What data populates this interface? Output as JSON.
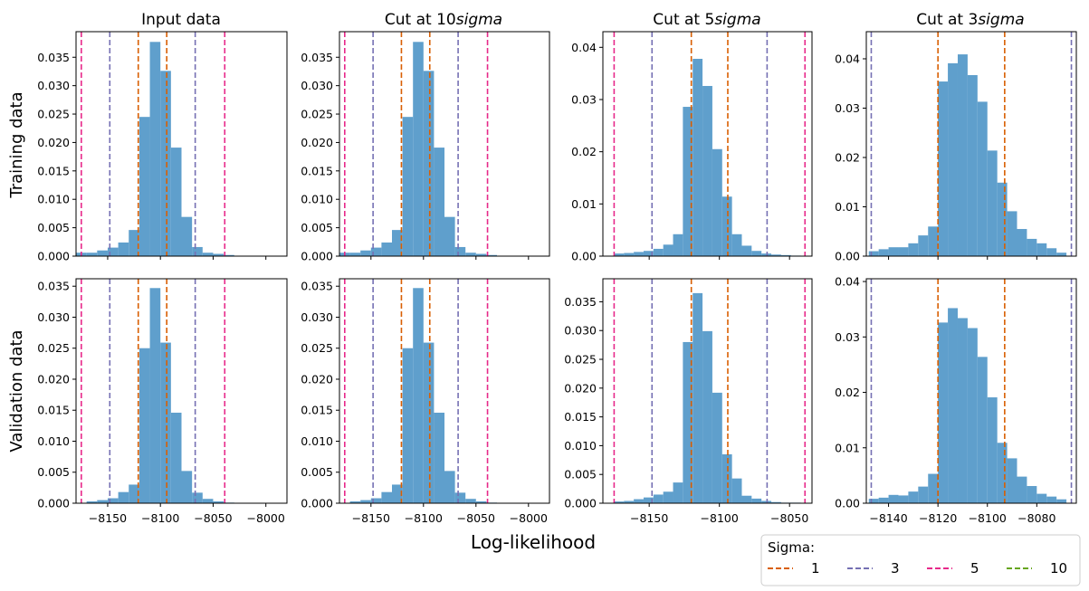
{
  "xlabel": "Log-likelihood",
  "column_titles": [
    "Input data",
    "Cut at 10",
    "Cut at 5",
    "Cut at 3"
  ],
  "column_title_suffix": "sigma",
  "row_labels": [
    "Training data",
    "Validation data"
  ],
  "legend": {
    "title": "Sigma:",
    "entries": [
      {
        "label": "1",
        "color": "#d95f02"
      },
      {
        "label": "3",
        "color": "#7570b3"
      },
      {
        "label": "5",
        "color": "#e7298a"
      },
      {
        "label": "10",
        "color": "#66a61e"
      }
    ]
  },
  "colors": {
    "bar": "#5f9fcc",
    "sigma1": "#d95f02",
    "sigma3": "#7570b3",
    "sigma5": "#e7298a"
  },
  "chart_data": [
    {
      "type": "bar",
      "panel": "Training data / Input data",
      "xlim": [
        -8180,
        -7980
      ],
      "ylim": [
        0,
        0.0395
      ],
      "xticks": [
        -8150,
        -8100,
        -8050,
        -8000
      ],
      "xticklabels": [
        "",
        "",
        "",
        ""
      ],
      "yticks": [
        0,
        0.005,
        0.01,
        0.015,
        0.02,
        0.025,
        0.03,
        0.035
      ],
      "yticklabels": [
        "0.000",
        "0.005",
        "0.010",
        "0.015",
        "0.020",
        "0.025",
        "0.030",
        "0.035"
      ],
      "bin_edges": [
        -8180,
        -8170,
        -8160,
        -8150,
        -8140,
        -8130,
        -8120,
        -8110,
        -8100,
        -8090,
        -8080,
        -8070,
        -8060,
        -8050,
        -8040,
        -8030
      ],
      "values": [
        0.0006,
        0.0006,
        0.001,
        0.0015,
        0.0024,
        0.0046,
        0.0245,
        0.0377,
        0.0326,
        0.0191,
        0.0069,
        0.0016,
        0.0006,
        0.0004,
        0.0002
      ],
      "sigma_lines": [
        {
          "sigma": "1",
          "x": [
            -8121,
            -8094
          ]
        },
        {
          "sigma": "3",
          "x": [
            -8148,
            -8067
          ]
        },
        {
          "sigma": "5",
          "x": [
            -8175,
            -8039
          ]
        }
      ]
    },
    {
      "type": "bar",
      "panel": "Training data / Cut at 10sigma",
      "xlim": [
        -8180,
        -7980
      ],
      "ylim": [
        0,
        0.0395
      ],
      "xticks": [
        -8150,
        -8100,
        -8050,
        -8000
      ],
      "xticklabels": [
        "",
        "",
        "",
        ""
      ],
      "yticks": [
        0,
        0.005,
        0.01,
        0.015,
        0.02,
        0.025,
        0.03,
        0.035
      ],
      "yticklabels": [
        "0.000",
        "0.005",
        "0.010",
        "0.015",
        "0.020",
        "0.025",
        "0.030",
        "0.035"
      ],
      "bin_edges": [
        -8180,
        -8170,
        -8160,
        -8150,
        -8140,
        -8130,
        -8120,
        -8110,
        -8100,
        -8090,
        -8080,
        -8070,
        -8060,
        -8050,
        -8040,
        -8030
      ],
      "values": [
        0.0006,
        0.0006,
        0.001,
        0.0015,
        0.0024,
        0.0046,
        0.0245,
        0.0377,
        0.0326,
        0.0191,
        0.0069,
        0.0016,
        0.0006,
        0.0004,
        0.0002
      ],
      "sigma_lines": [
        {
          "sigma": "1",
          "x": [
            -8121,
            -8094
          ]
        },
        {
          "sigma": "3",
          "x": [
            -8148,
            -8067
          ]
        },
        {
          "sigma": "5",
          "x": [
            -8175,
            -8039
          ]
        }
      ]
    },
    {
      "type": "bar",
      "panel": "Training data / Cut at 5sigma",
      "xlim": [
        -8183,
        -8034
      ],
      "ylim": [
        0,
        0.043
      ],
      "xticks": [
        -8150,
        -8100,
        -8050
      ],
      "xticklabels": [
        "",
        "",
        ""
      ],
      "yticks": [
        0,
        0.01,
        0.02,
        0.03,
        0.04
      ],
      "yticklabels": [
        "0.00",
        "0.01",
        "0.02",
        "0.03",
        "0.04"
      ],
      "bin_edges": [
        -8175,
        -8168,
        -8161,
        -8154,
        -8147,
        -8140,
        -8133,
        -8126,
        -8119,
        -8112,
        -8105,
        -8098,
        -8091,
        -8084,
        -8077,
        -8070,
        -8063,
        -8056,
        -8049,
        -8042
      ],
      "values": [
        0.0005,
        0.0006,
        0.0008,
        0.001,
        0.0014,
        0.0022,
        0.0042,
        0.0286,
        0.0378,
        0.0326,
        0.0205,
        0.0114,
        0.0042,
        0.002,
        0.001,
        0.0005,
        0.0003,
        0.0002,
        0.0001
      ],
      "sigma_lines": [
        {
          "sigma": "1",
          "x": [
            -8120,
            -8094
          ]
        },
        {
          "sigma": "3",
          "x": [
            -8148,
            -8066
          ]
        },
        {
          "sigma": "5",
          "x": [
            -8175,
            -8039
          ]
        }
      ]
    },
    {
      "type": "bar",
      "panel": "Training data / Cut at 3sigma",
      "xlim": [
        -8149,
        -8064
      ],
      "ylim": [
        0,
        0.0455
      ],
      "xticks": [
        -8140,
        -8120,
        -8100,
        -8080
      ],
      "xticklabels": [
        "",
        "",
        "",
        ""
      ],
      "yticks": [
        0,
        0.01,
        0.02,
        0.03,
        0.04
      ],
      "yticklabels": [
        "0.00",
        "0.01",
        "0.02",
        "0.03",
        "0.04"
      ],
      "bin_edges": [
        -8148,
        -8144,
        -8140,
        -8136,
        -8132,
        -8128,
        -8124,
        -8120,
        -8116,
        -8112,
        -8108,
        -8104,
        -8100,
        -8096,
        -8092,
        -8088,
        -8084,
        -8080,
        -8076,
        -8072,
        -8068
      ],
      "values": [
        0.001,
        0.0014,
        0.0018,
        0.0018,
        0.0026,
        0.0042,
        0.006,
        0.0354,
        0.0391,
        0.0409,
        0.0367,
        0.0313,
        0.0214,
        0.0149,
        0.0091,
        0.0055,
        0.0035,
        0.0026,
        0.0016,
        0.0007
      ],
      "sigma_lines": [
        {
          "sigma": "1",
          "x": [
            -8120,
            -8093
          ]
        },
        {
          "sigma": "3",
          "x": [
            -8147,
            -8066
          ]
        }
      ]
    },
    {
      "type": "bar",
      "panel": "Validation data / Input data",
      "xlim": [
        -8180,
        -7980
      ],
      "ylim": [
        0,
        0.0362
      ],
      "xticks": [
        -8150,
        -8100,
        -8050,
        -8000
      ],
      "xticklabels": [
        "−8150",
        "−8100",
        "−8050",
        "−8000"
      ],
      "yticks": [
        0,
        0.005,
        0.01,
        0.015,
        0.02,
        0.025,
        0.03,
        0.035
      ],
      "yticklabels": [
        "0.000",
        "0.005",
        "0.010",
        "0.015",
        "0.020",
        "0.025",
        "0.030",
        "0.035"
      ],
      "bin_edges": [
        -8170,
        -8160,
        -8150,
        -8140,
        -8130,
        -8120,
        -8110,
        -8100,
        -8090,
        -8080,
        -8070,
        -8060,
        -8050,
        -8040,
        -8030
      ],
      "values": [
        0.0003,
        0.0005,
        0.0008,
        0.0018,
        0.003,
        0.025,
        0.0347,
        0.0259,
        0.0146,
        0.0052,
        0.0017,
        0.0007,
        0.0003,
        0.0001
      ],
      "sigma_lines": [
        {
          "sigma": "1",
          "x": [
            -8121,
            -8094
          ]
        },
        {
          "sigma": "3",
          "x": [
            -8148,
            -8067
          ]
        },
        {
          "sigma": "5",
          "x": [
            -8175,
            -8039
          ]
        }
      ]
    },
    {
      "type": "bar",
      "panel": "Validation data / Cut at 10sigma",
      "xlim": [
        -8180,
        -7980
      ],
      "ylim": [
        0,
        0.0362
      ],
      "xticks": [
        -8150,
        -8100,
        -8050,
        -8000
      ],
      "xticklabels": [
        "−8150",
        "−8100",
        "−8050",
        "−8000"
      ],
      "yticks": [
        0,
        0.005,
        0.01,
        0.015,
        0.02,
        0.025,
        0.03,
        0.035
      ],
      "yticklabels": [
        "0.000",
        "0.005",
        "0.010",
        "0.015",
        "0.020",
        "0.025",
        "0.030",
        "0.035"
      ],
      "bin_edges": [
        -8170,
        -8160,
        -8150,
        -8140,
        -8130,
        -8120,
        -8110,
        -8100,
        -8090,
        -8080,
        -8070,
        -8060,
        -8050,
        -8040,
        -8030
      ],
      "values": [
        0.0003,
        0.0005,
        0.0008,
        0.0018,
        0.003,
        0.025,
        0.0347,
        0.0259,
        0.0146,
        0.0052,
        0.0017,
        0.0007,
        0.0003,
        0.0001
      ],
      "sigma_lines": [
        {
          "sigma": "1",
          "x": [
            -8121,
            -8094
          ]
        },
        {
          "sigma": "3",
          "x": [
            -8148,
            -8067
          ]
        },
        {
          "sigma": "5",
          "x": [
            -8175,
            -8039
          ]
        }
      ]
    },
    {
      "type": "bar",
      "panel": "Validation data / Cut at 5sigma",
      "xlim": [
        -8183,
        -8034
      ],
      "ylim": [
        0,
        0.039
      ],
      "xticks": [
        -8150,
        -8100,
        -8050
      ],
      "xticklabels": [
        "−8150",
        "−8100",
        "−8050"
      ],
      "yticks": [
        0,
        0.005,
        0.01,
        0.015,
        0.02,
        0.025,
        0.03,
        0.035
      ],
      "yticklabels": [
        "0.000",
        "0.005",
        "0.010",
        "0.015",
        "0.020",
        "0.025",
        "0.030",
        "0.035"
      ],
      "bin_edges": [
        -8175,
        -8168,
        -8161,
        -8154,
        -8147,
        -8140,
        -8133,
        -8126,
        -8119,
        -8112,
        -8105,
        -8098,
        -8091,
        -8084,
        -8077,
        -8070,
        -8063,
        -8056,
        -8049,
        -8042
      ],
      "values": [
        0.0003,
        0.0004,
        0.0007,
        0.001,
        0.0015,
        0.002,
        0.0036,
        0.028,
        0.0365,
        0.0299,
        0.0192,
        0.0085,
        0.0043,
        0.0013,
        0.0008,
        0.0004,
        0.0002,
        0.0001,
        0.0001
      ],
      "sigma_lines": [
        {
          "sigma": "1",
          "x": [
            -8120,
            -8094
          ]
        },
        {
          "sigma": "3",
          "x": [
            -8148,
            -8066
          ]
        },
        {
          "sigma": "5",
          "x": [
            -8175,
            -8039
          ]
        }
      ]
    },
    {
      "type": "bar",
      "panel": "Validation data / Cut at 3sigma",
      "xlim": [
        -8149,
        -8064
      ],
      "ylim": [
        0,
        0.0405
      ],
      "xticks": [
        -8140,
        -8120,
        -8100,
        -8080
      ],
      "xticklabels": [
        "−8140",
        "−8120",
        "−8100",
        "−8080"
      ],
      "yticks": [
        0,
        0.01,
        0.02,
        0.03,
        0.04
      ],
      "yticklabels": [
        "0.00",
        "0.01",
        "0.02",
        "0.03",
        "0.04"
      ],
      "bin_edges": [
        -8148,
        -8144,
        -8140,
        -8136,
        -8132,
        -8128,
        -8124,
        -8120,
        -8116,
        -8112,
        -8108,
        -8104,
        -8100,
        -8096,
        -8092,
        -8088,
        -8084,
        -8080,
        -8076,
        -8072,
        -8068
      ],
      "values": [
        0.0008,
        0.001,
        0.0015,
        0.0014,
        0.0021,
        0.003,
        0.0053,
        0.0326,
        0.0352,
        0.0334,
        0.0316,
        0.0264,
        0.0191,
        0.0109,
        0.0081,
        0.0048,
        0.0031,
        0.0017,
        0.0012,
        0.0007
      ],
      "sigma_lines": [
        {
          "sigma": "1",
          "x": [
            -8120,
            -8093
          ]
        },
        {
          "sigma": "3",
          "x": [
            -8147,
            -8066
          ]
        }
      ]
    }
  ]
}
